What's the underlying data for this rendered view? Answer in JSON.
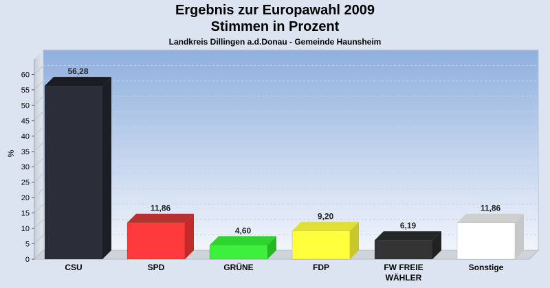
{
  "chart_data": {
    "type": "bar",
    "title": "Ergebnis zur Europawahl 2009",
    "subtitle": "Stimmen in Prozent",
    "subtitle2": "Landkreis Dillingen a.d.Donau - Gemeinde Haunsheim",
    "ylabel": "%",
    "xlabel": "",
    "ylim": [
      0,
      65
    ],
    "yticks": [
      0,
      5,
      10,
      15,
      20,
      25,
      30,
      35,
      40,
      45,
      50,
      55,
      60
    ],
    "grid": true,
    "legend": "none",
    "categories": [
      "CSU",
      "SPD",
      "GRÜNE",
      "FDP",
      "FW FREIE WÄHLER",
      "Sonstige"
    ],
    "category_lines": [
      [
        "CSU"
      ],
      [
        "SPD"
      ],
      [
        "GRÜNE"
      ],
      [
        "FDP"
      ],
      [
        "FW FREIE",
        "WÄHLER"
      ],
      [
        "Sonstige"
      ]
    ],
    "values": [
      56.28,
      11.86,
      4.6,
      9.2,
      6.19,
      11.86
    ],
    "value_labels": [
      "56,28",
      "11,86",
      "4,60",
      "9,20",
      "6,19",
      "11,86"
    ],
    "colors": [
      "#2b2e38",
      "#ff3a3a",
      "#3cf03c",
      "#ffff3c",
      "#333333",
      "#ffffff"
    ],
    "side_colors": [
      "#1c1e25",
      "#c42a2a",
      "#26b826",
      "#c8c82a",
      "#222222",
      "#c8c8c8"
    ],
    "top_colors": [
      "#1a1c22",
      "#b83030",
      "#2ed32e",
      "#e0e032",
      "#262626",
      "#cfcfcf"
    ]
  }
}
